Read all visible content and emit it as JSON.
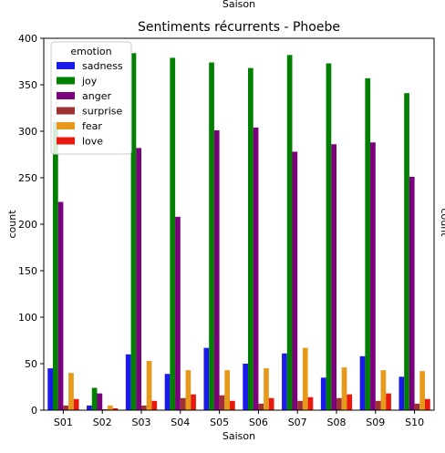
{
  "page": {
    "top_cut_label": "Saison",
    "right_cut_label": "count"
  },
  "chart_data": {
    "type": "bar",
    "title": "Sentiments récurrents - Phoebe",
    "xlabel": "Saison",
    "ylabel": "count",
    "ylim": [
      0,
      400
    ],
    "yticks": [
      0,
      50,
      100,
      150,
      200,
      250,
      300,
      350,
      400
    ],
    "grid": false,
    "categories": [
      "S01",
      "S02",
      "S03",
      "S04",
      "S05",
      "S06",
      "S07",
      "S08",
      "S09",
      "S10"
    ],
    "legend": {
      "title": "emotion",
      "placement": "top-left"
    },
    "series": [
      {
        "name": "sadness",
        "color": "#1a1aeb",
        "values": [
          45,
          5,
          60,
          39,
          67,
          50,
          61,
          35,
          58,
          36
        ]
      },
      {
        "name": "joy",
        "color": "#007f00",
        "values": [
          310,
          24,
          384,
          379,
          374,
          368,
          382,
          373,
          357,
          341
        ]
      },
      {
        "name": "anger",
        "color": "#7b007b",
        "values": [
          224,
          18,
          282,
          208,
          301,
          304,
          278,
          286,
          288,
          251
        ]
      },
      {
        "name": "surprise",
        "color": "#9e3232",
        "values": [
          5,
          1,
          5,
          13,
          16,
          7,
          10,
          13,
          10,
          7
        ]
      },
      {
        "name": "fear",
        "color": "#e69a1c",
        "values": [
          40,
          5,
          53,
          43,
          43,
          45,
          67,
          46,
          43,
          42
        ]
      },
      {
        "name": "love",
        "color": "#e8190f",
        "values": [
          12,
          2,
          10,
          17,
          10,
          13,
          14,
          17,
          18,
          12
        ]
      }
    ]
  }
}
